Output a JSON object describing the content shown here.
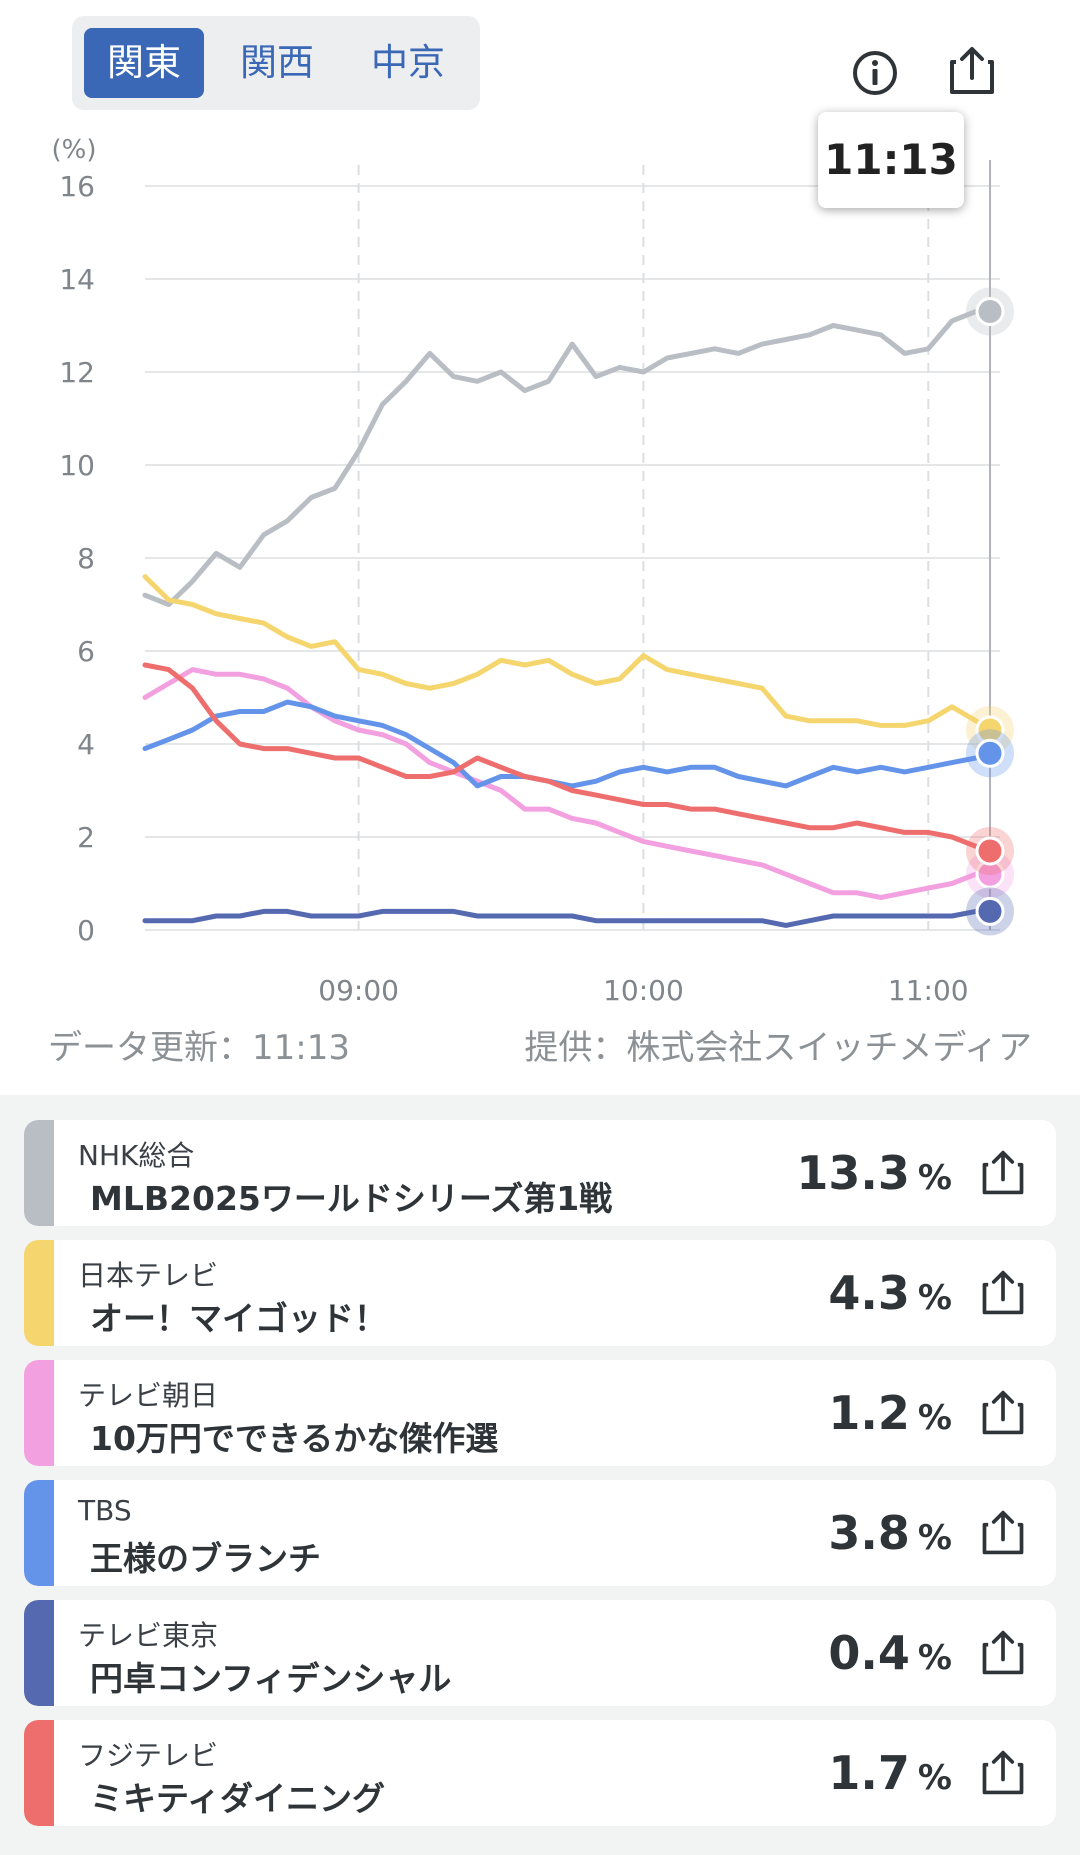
{
  "region_tabs": [
    {
      "label": "関東",
      "active": true
    },
    {
      "label": "関西",
      "active": false
    },
    {
      "label": "中京",
      "active": false
    }
  ],
  "icons": {
    "info": "info-icon",
    "share": "share-icon"
  },
  "chart_data": {
    "type": "line",
    "ylabel": "(%)",
    "ylim": [
      0,
      16
    ],
    "yticks": [
      0,
      2,
      4,
      6,
      8,
      10,
      12,
      14,
      16
    ],
    "xlim": [
      "08:15",
      "11:13"
    ],
    "xticks": [
      "09:00",
      "10:00",
      "11:00"
    ],
    "grid": true,
    "cursor_label": "11:13",
    "series": [
      {
        "name": "NHK総合",
        "color": "#b9bec4",
        "x": [
          "08:15",
          "08:20",
          "08:25",
          "08:30",
          "08:35",
          "08:40",
          "08:45",
          "08:50",
          "08:55",
          "09:00",
          "09:05",
          "09:10",
          "09:15",
          "09:20",
          "09:25",
          "09:30",
          "09:35",
          "09:40",
          "09:45",
          "09:50",
          "09:55",
          "10:00",
          "10:05",
          "10:10",
          "10:15",
          "10:20",
          "10:25",
          "10:30",
          "10:35",
          "10:40",
          "10:45",
          "10:50",
          "10:55",
          "11:00",
          "11:05",
          "11:10",
          "11:13"
        ],
        "values": [
          7.2,
          7.0,
          7.5,
          8.1,
          7.8,
          8.5,
          8.8,
          9.3,
          9.5,
          10.3,
          11.3,
          11.8,
          12.4,
          11.9,
          11.8,
          12.0,
          11.6,
          11.8,
          12.6,
          11.9,
          12.1,
          12.0,
          12.3,
          12.4,
          12.5,
          12.4,
          12.6,
          12.7,
          12.8,
          13.0,
          12.9,
          12.8,
          12.4,
          12.5,
          13.1,
          13.3,
          13.3
        ]
      },
      {
        "name": "日本テレビ",
        "color": "#f5d56e",
        "x": [
          "08:15",
          "08:20",
          "08:25",
          "08:30",
          "08:35",
          "08:40",
          "08:45",
          "08:50",
          "08:55",
          "09:00",
          "09:05",
          "09:10",
          "09:15",
          "09:20",
          "09:25",
          "09:30",
          "09:35",
          "09:40",
          "09:45",
          "09:50",
          "09:55",
          "10:00",
          "10:05",
          "10:10",
          "10:15",
          "10:20",
          "10:25",
          "10:30",
          "10:35",
          "10:40",
          "10:45",
          "10:50",
          "10:55",
          "11:00",
          "11:05",
          "11:10",
          "11:13"
        ],
        "values": [
          7.6,
          7.1,
          7.0,
          6.8,
          6.7,
          6.6,
          6.3,
          6.1,
          6.2,
          5.6,
          5.5,
          5.3,
          5.2,
          5.3,
          5.5,
          5.8,
          5.7,
          5.8,
          5.5,
          5.3,
          5.4,
          5.9,
          5.6,
          5.5,
          5.4,
          5.3,
          5.2,
          4.6,
          4.5,
          4.5,
          4.5,
          4.4,
          4.4,
          4.5,
          4.8,
          4.5,
          4.3
        ]
      },
      {
        "name": "テレビ朝日",
        "color": "#f2a0e0",
        "x": [
          "08:15",
          "08:20",
          "08:25",
          "08:30",
          "08:35",
          "08:40",
          "08:45",
          "08:50",
          "08:55",
          "09:00",
          "09:05",
          "09:10",
          "09:15",
          "09:20",
          "09:25",
          "09:30",
          "09:35",
          "09:40",
          "09:45",
          "09:50",
          "09:55",
          "10:00",
          "10:05",
          "10:10",
          "10:15",
          "10:20",
          "10:25",
          "10:30",
          "10:35",
          "10:40",
          "10:45",
          "10:50",
          "10:55",
          "11:00",
          "11:05",
          "11:10",
          "11:13"
        ],
        "values": [
          5.0,
          5.3,
          5.6,
          5.5,
          5.5,
          5.4,
          5.2,
          4.8,
          4.5,
          4.3,
          4.2,
          4.0,
          3.6,
          3.4,
          3.2,
          3.0,
          2.6,
          2.6,
          2.4,
          2.3,
          2.1,
          1.9,
          1.8,
          1.7,
          1.6,
          1.5,
          1.4,
          1.2,
          1.0,
          0.8,
          0.8,
          0.7,
          0.8,
          0.9,
          1.0,
          1.2,
          1.2
        ]
      },
      {
        "name": "TBS",
        "color": "#6494ea",
        "x": [
          "08:15",
          "08:20",
          "08:25",
          "08:30",
          "08:35",
          "08:40",
          "08:45",
          "08:50",
          "08:55",
          "09:00",
          "09:05",
          "09:10",
          "09:15",
          "09:20",
          "09:25",
          "09:30",
          "09:35",
          "09:40",
          "09:45",
          "09:50",
          "09:55",
          "10:00",
          "10:05",
          "10:10",
          "10:15",
          "10:20",
          "10:25",
          "10:30",
          "10:35",
          "10:40",
          "10:45",
          "10:50",
          "10:55",
          "11:00",
          "11:05",
          "11:10",
          "11:13"
        ],
        "values": [
          3.9,
          4.1,
          4.3,
          4.6,
          4.7,
          4.7,
          4.9,
          4.8,
          4.6,
          4.5,
          4.4,
          4.2,
          3.9,
          3.6,
          3.1,
          3.3,
          3.3,
          3.2,
          3.1,
          3.2,
          3.4,
          3.5,
          3.4,
          3.5,
          3.5,
          3.3,
          3.2,
          3.1,
          3.3,
          3.5,
          3.4,
          3.5,
          3.4,
          3.5,
          3.6,
          3.7,
          3.8
        ]
      },
      {
        "name": "テレビ東京",
        "color": "#5569b0",
        "x": [
          "08:15",
          "08:20",
          "08:25",
          "08:30",
          "08:35",
          "08:40",
          "08:45",
          "08:50",
          "08:55",
          "09:00",
          "09:05",
          "09:10",
          "09:15",
          "09:20",
          "09:25",
          "09:30",
          "09:35",
          "09:40",
          "09:45",
          "09:50",
          "09:55",
          "10:00",
          "10:05",
          "10:10",
          "10:15",
          "10:20",
          "10:25",
          "10:30",
          "10:35",
          "10:40",
          "10:45",
          "10:50",
          "10:55",
          "11:00",
          "11:05",
          "11:10",
          "11:13"
        ],
        "values": [
          0.2,
          0.2,
          0.2,
          0.3,
          0.3,
          0.4,
          0.4,
          0.3,
          0.3,
          0.3,
          0.4,
          0.4,
          0.4,
          0.4,
          0.3,
          0.3,
          0.3,
          0.3,
          0.3,
          0.2,
          0.2,
          0.2,
          0.2,
          0.2,
          0.2,
          0.2,
          0.2,
          0.1,
          0.2,
          0.3,
          0.3,
          0.3,
          0.3,
          0.3,
          0.3,
          0.4,
          0.4
        ]
      },
      {
        "name": "フジテレビ",
        "color": "#ee6e6e",
        "x": [
          "08:15",
          "08:20",
          "08:25",
          "08:30",
          "08:35",
          "08:40",
          "08:45",
          "08:50",
          "08:55",
          "09:00",
          "09:05",
          "09:10",
          "09:15",
          "09:20",
          "09:25",
          "09:30",
          "09:35",
          "09:40",
          "09:45",
          "09:50",
          "09:55",
          "10:00",
          "10:05",
          "10:10",
          "10:15",
          "10:20",
          "10:25",
          "10:30",
          "10:35",
          "10:40",
          "10:45",
          "10:50",
          "10:55",
          "11:00",
          "11:05",
          "11:10",
          "11:13"
        ],
        "values": [
          5.7,
          5.6,
          5.2,
          4.5,
          4.0,
          3.9,
          3.9,
          3.8,
          3.7,
          3.7,
          3.5,
          3.3,
          3.3,
          3.4,
          3.7,
          3.5,
          3.3,
          3.2,
          3.0,
          2.9,
          2.8,
          2.7,
          2.7,
          2.6,
          2.6,
          2.5,
          2.4,
          2.3,
          2.2,
          2.2,
          2.3,
          2.2,
          2.1,
          2.1,
          2.0,
          1.8,
          1.7
        ]
      }
    ]
  },
  "update_text": "データ更新：11:13",
  "provider_text": "提供：株式会社スイッチメディア",
  "programs": [
    {
      "channel": "NHK総合",
      "title": "MLB2025ワールドシリーズ第1戦",
      "rating": "13.3",
      "unit": "%",
      "color": "#b9bec4"
    },
    {
      "channel": "日本テレビ",
      "title": "オー！マイゴッド！",
      "rating": "4.3",
      "unit": "%",
      "color": "#f5d56e"
    },
    {
      "channel": "テレビ朝日",
      "title": "10万円でできるかな傑作選",
      "rating": "1.2",
      "unit": "%",
      "color": "#f2a0e0"
    },
    {
      "channel": "TBS",
      "title": "王様のブランチ",
      "rating": "3.8",
      "unit": "%",
      "color": "#6494ea"
    },
    {
      "channel": "テレビ東京",
      "title": "円卓コンフィデンシャル",
      "rating": "0.4",
      "unit": "%",
      "color": "#5569b0"
    },
    {
      "channel": "フジテレビ",
      "title": "ミキティダイニング",
      "rating": "1.7",
      "unit": "%",
      "color": "#ee6e6e"
    }
  ]
}
